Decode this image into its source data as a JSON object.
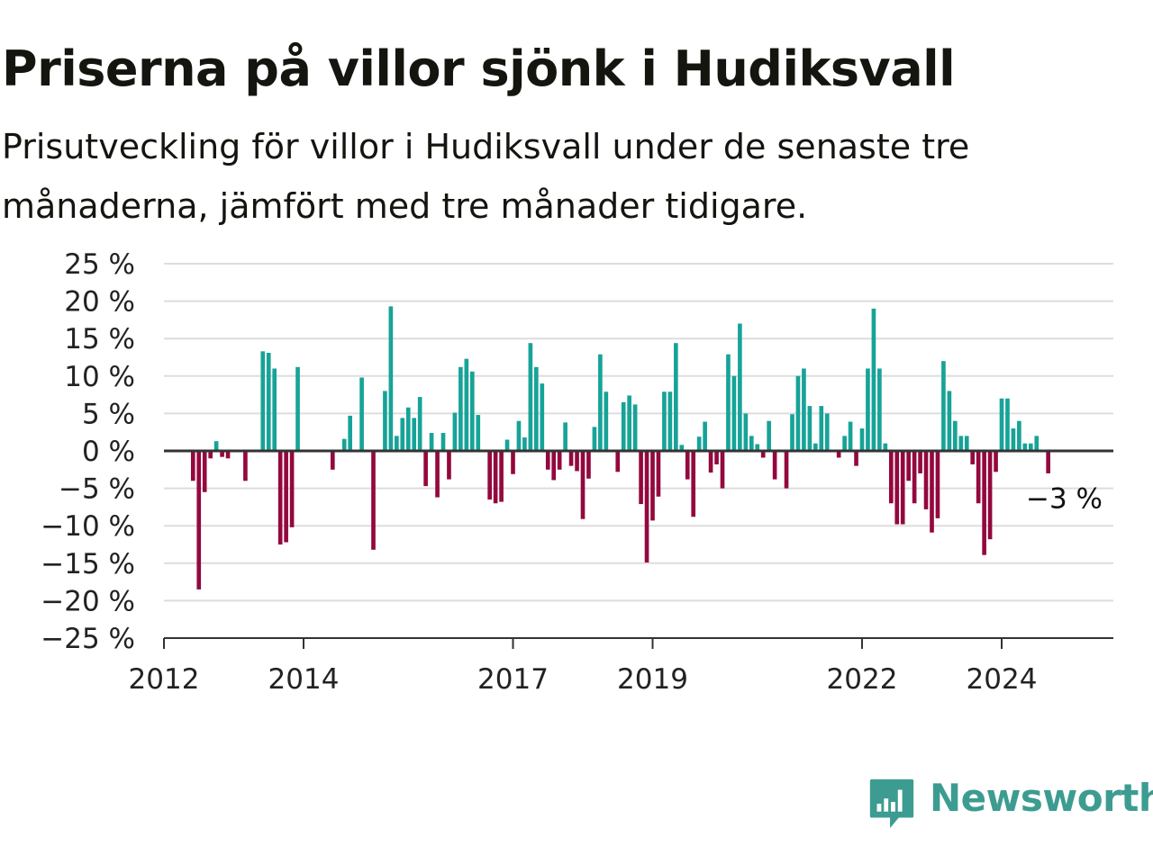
{
  "title": "Priserna på villor sjönk i Hudiksvall",
  "subtitle": "Prisutveckling för villor i Hudiksvall under de senaste tre månaderna, jämfört med tre månader tidigare.",
  "annotation": "−3 %",
  "brand": "Newsworthy",
  "colors": {
    "positive": "#17a398",
    "negative": "#93083e",
    "grid": "#dddddd",
    "axis": "#333333",
    "brand": "#3d9c91"
  },
  "chart_data": {
    "type": "bar",
    "xlim": [
      2012.0,
      2025.6
    ],
    "ylim": [
      -25,
      25
    ],
    "x_ticks": [
      {
        "value": 2012,
        "label": "2012"
      },
      {
        "value": 2014,
        "label": "2014"
      },
      {
        "value": 2017,
        "label": "2017"
      },
      {
        "value": 2019,
        "label": "2019"
      },
      {
        "value": 2022,
        "label": "2022"
      },
      {
        "value": 2024,
        "label": "2024"
      }
    ],
    "y_ticks": [
      {
        "value": 25,
        "label": "25 %"
      },
      {
        "value": 20,
        "label": "20 %"
      },
      {
        "value": 15,
        "label": "15 %"
      },
      {
        "value": 10,
        "label": "10 %"
      },
      {
        "value": 5,
        "label": "5 %"
      },
      {
        "value": 0,
        "label": "0 %"
      },
      {
        "value": -5,
        "label": "−5 %"
      },
      {
        "value": -10,
        "label": "−10 %"
      },
      {
        "value": -15,
        "label": "−15 %"
      },
      {
        "value": -20,
        "label": "−20 %"
      },
      {
        "value": -25,
        "label": "−25 %"
      }
    ],
    "grid": true,
    "start": "2012-06",
    "monthly_values": [
      -4,
      -18.5,
      -5.5,
      -1,
      1.3,
      -0.8,
      -1,
      0,
      0,
      -4,
      0,
      0,
      13.3,
      13.1,
      11,
      -12.5,
      -12.2,
      -10.2,
      11.2,
      0,
      0,
      0,
      0,
      0,
      -2.5,
      0,
      1.6,
      4.7,
      0,
      9.8,
      0,
      -13.2,
      0,
      8,
      19.3,
      2,
      4.4,
      5.8,
      4.4,
      7.2,
      -4.7,
      2.4,
      -6.2,
      2.4,
      -3.8,
      5.1,
      11.2,
      12.3,
      10.6,
      4.8,
      0,
      -6.5,
      -7,
      -6.8,
      1.5,
      -3.1,
      4,
      1.8,
      14.4,
      11.2,
      9,
      -2.5,
      -3.9,
      -2.5,
      3.8,
      -2,
      -2.7,
      -9.1,
      -3.7,
      3.2,
      12.9,
      7.9,
      0,
      -2.8,
      6.5,
      7.4,
      6.2,
      -7.1,
      -14.9,
      -9.3,
      -6.1,
      7.9,
      7.9,
      14.4,
      0.8,
      -3.8,
      -8.8,
      1.9,
      3.9,
      -2.9,
      -1.8,
      -5,
      12.9,
      10,
      17,
      5,
      2,
      0.9,
      -0.9,
      4,
      -3.8,
      0,
      -5,
      4.9,
      10,
      11,
      6,
      1,
      6,
      5,
      0,
      -0.9,
      2,
      3.9,
      -2,
      3,
      11,
      19,
      11,
      1,
      -7,
      -9.8,
      -9.8,
      -4,
      -7,
      -3,
      -7.8,
      -10.9,
      -9,
      12,
      8,
      4,
      2,
      2,
      -1.8,
      -7,
      -13.9,
      -11.8,
      -2.8,
      7,
      7,
      3,
      4,
      1,
      1,
      2,
      0,
      -3
    ]
  }
}
